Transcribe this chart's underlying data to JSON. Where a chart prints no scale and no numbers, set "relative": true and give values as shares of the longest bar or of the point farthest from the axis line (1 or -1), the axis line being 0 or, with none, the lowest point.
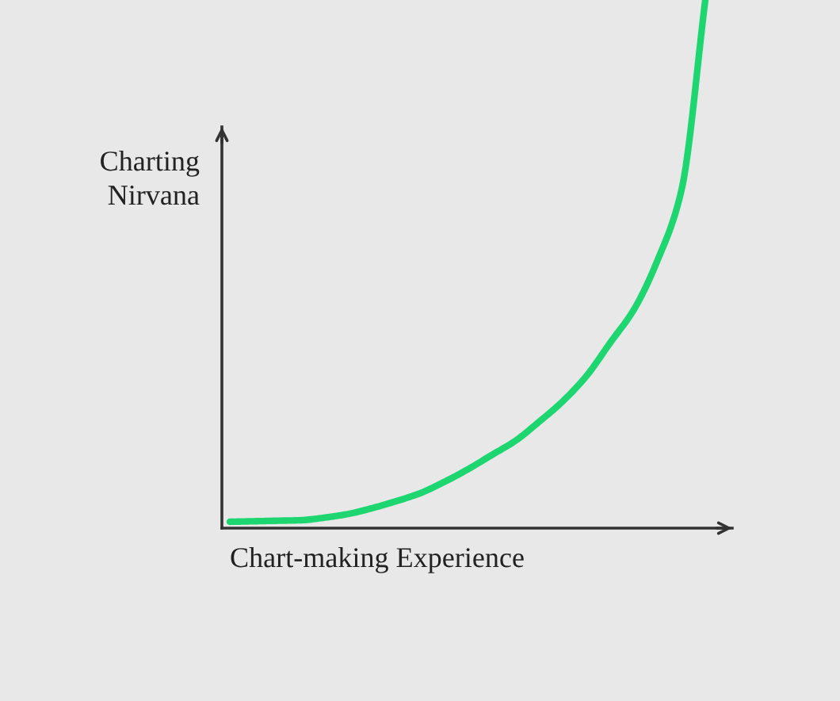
{
  "chart_data": {
    "type": "line",
    "relative": true,
    "xlabel": "Chart-making Experience",
    "ylabel": "Charting\nNirvana",
    "categories": [
      null,
      null,
      null,
      null,
      null,
      null,
      null,
      null,
      null,
      null,
      null,
      null,
      null,
      null,
      null,
      null,
      null,
      null,
      null,
      null,
      null
    ],
    "series": [
      {
        "color": "#1ed66f",
        "values": [
          0.012,
          0.013,
          0.014,
          0.015,
          0.02,
          0.027,
          0.038,
          0.051,
          0.066,
          0.087,
          0.111,
          0.138,
          0.165,
          0.201,
          0.24,
          0.288,
          0.351,
          0.414,
          0.508,
          0.64,
          1
        ]
      }
    ]
  }
}
